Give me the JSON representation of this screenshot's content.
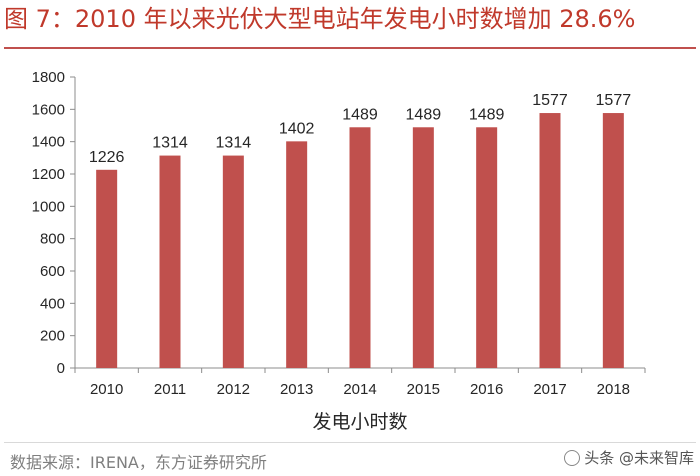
{
  "title": "图 7：2010 年以来光伏大型电站年发电小时数增加 28.6%",
  "source": "数据来源：IRENA，东方证券研究所",
  "watermark": "头条 @未来智库",
  "chart_data": {
    "type": "bar",
    "categories": [
      "2010",
      "2011",
      "2012",
      "2013",
      "2014",
      "2015",
      "2016",
      "2017",
      "2018"
    ],
    "values": [
      1226,
      1314,
      1314,
      1402,
      1489,
      1489,
      1489,
      1577,
      1577
    ],
    "data_labels": [
      "1226",
      "1314",
      "1314",
      "1402",
      "1489",
      "1489",
      "1489",
      "1577",
      "1577"
    ],
    "title": "",
    "xlabel": "发电小时数",
    "ylabel": "",
    "ylim": [
      0,
      1800
    ],
    "yticks": [
      0,
      200,
      400,
      600,
      800,
      1000,
      1200,
      1400,
      1600,
      1800
    ],
    "grid": false,
    "bar_color": "#c0504d"
  }
}
